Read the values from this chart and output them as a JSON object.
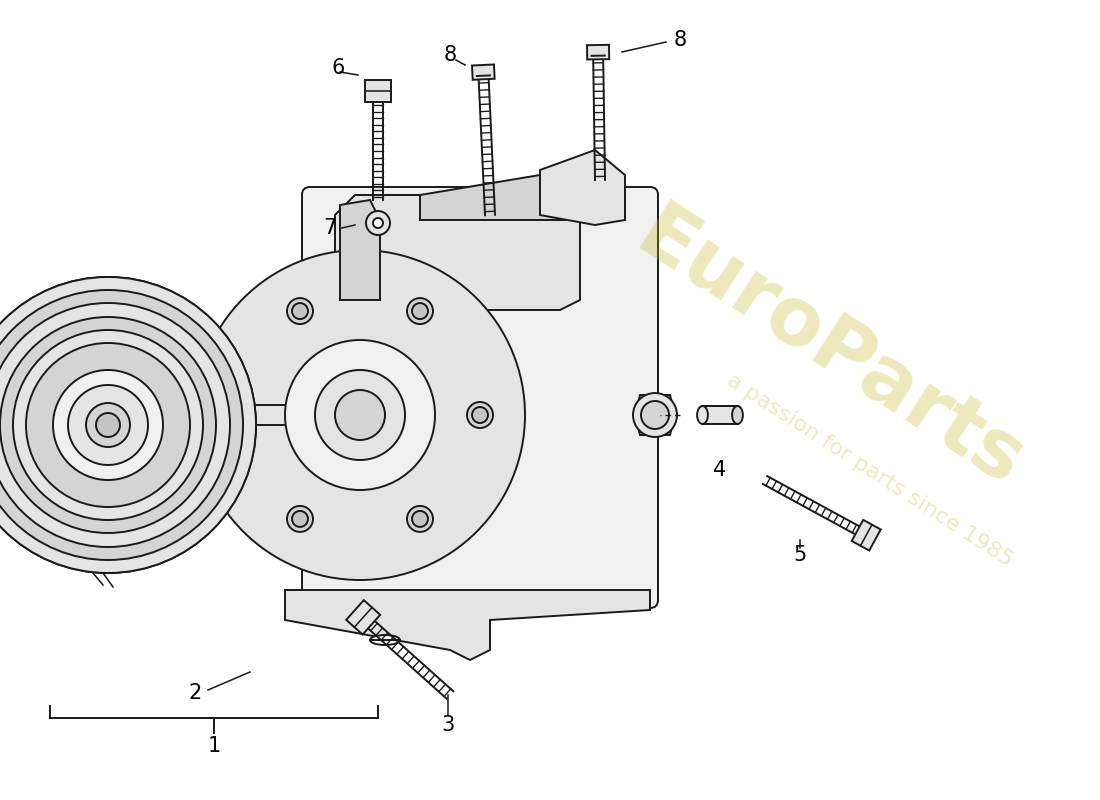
{
  "background_color": "#ffffff",
  "line_color": "#1a1a1a",
  "label_color": "#000000",
  "figsize": [
    11.0,
    8.0
  ],
  "dpi": 100,
  "lw": 1.4,
  "label_fontsize": 15,
  "watermark1": "EuroParts",
  "watermark2": "a passion for parts since 1985",
  "watermark_color": "#c8b820",
  "watermark_alpha": 0.3
}
